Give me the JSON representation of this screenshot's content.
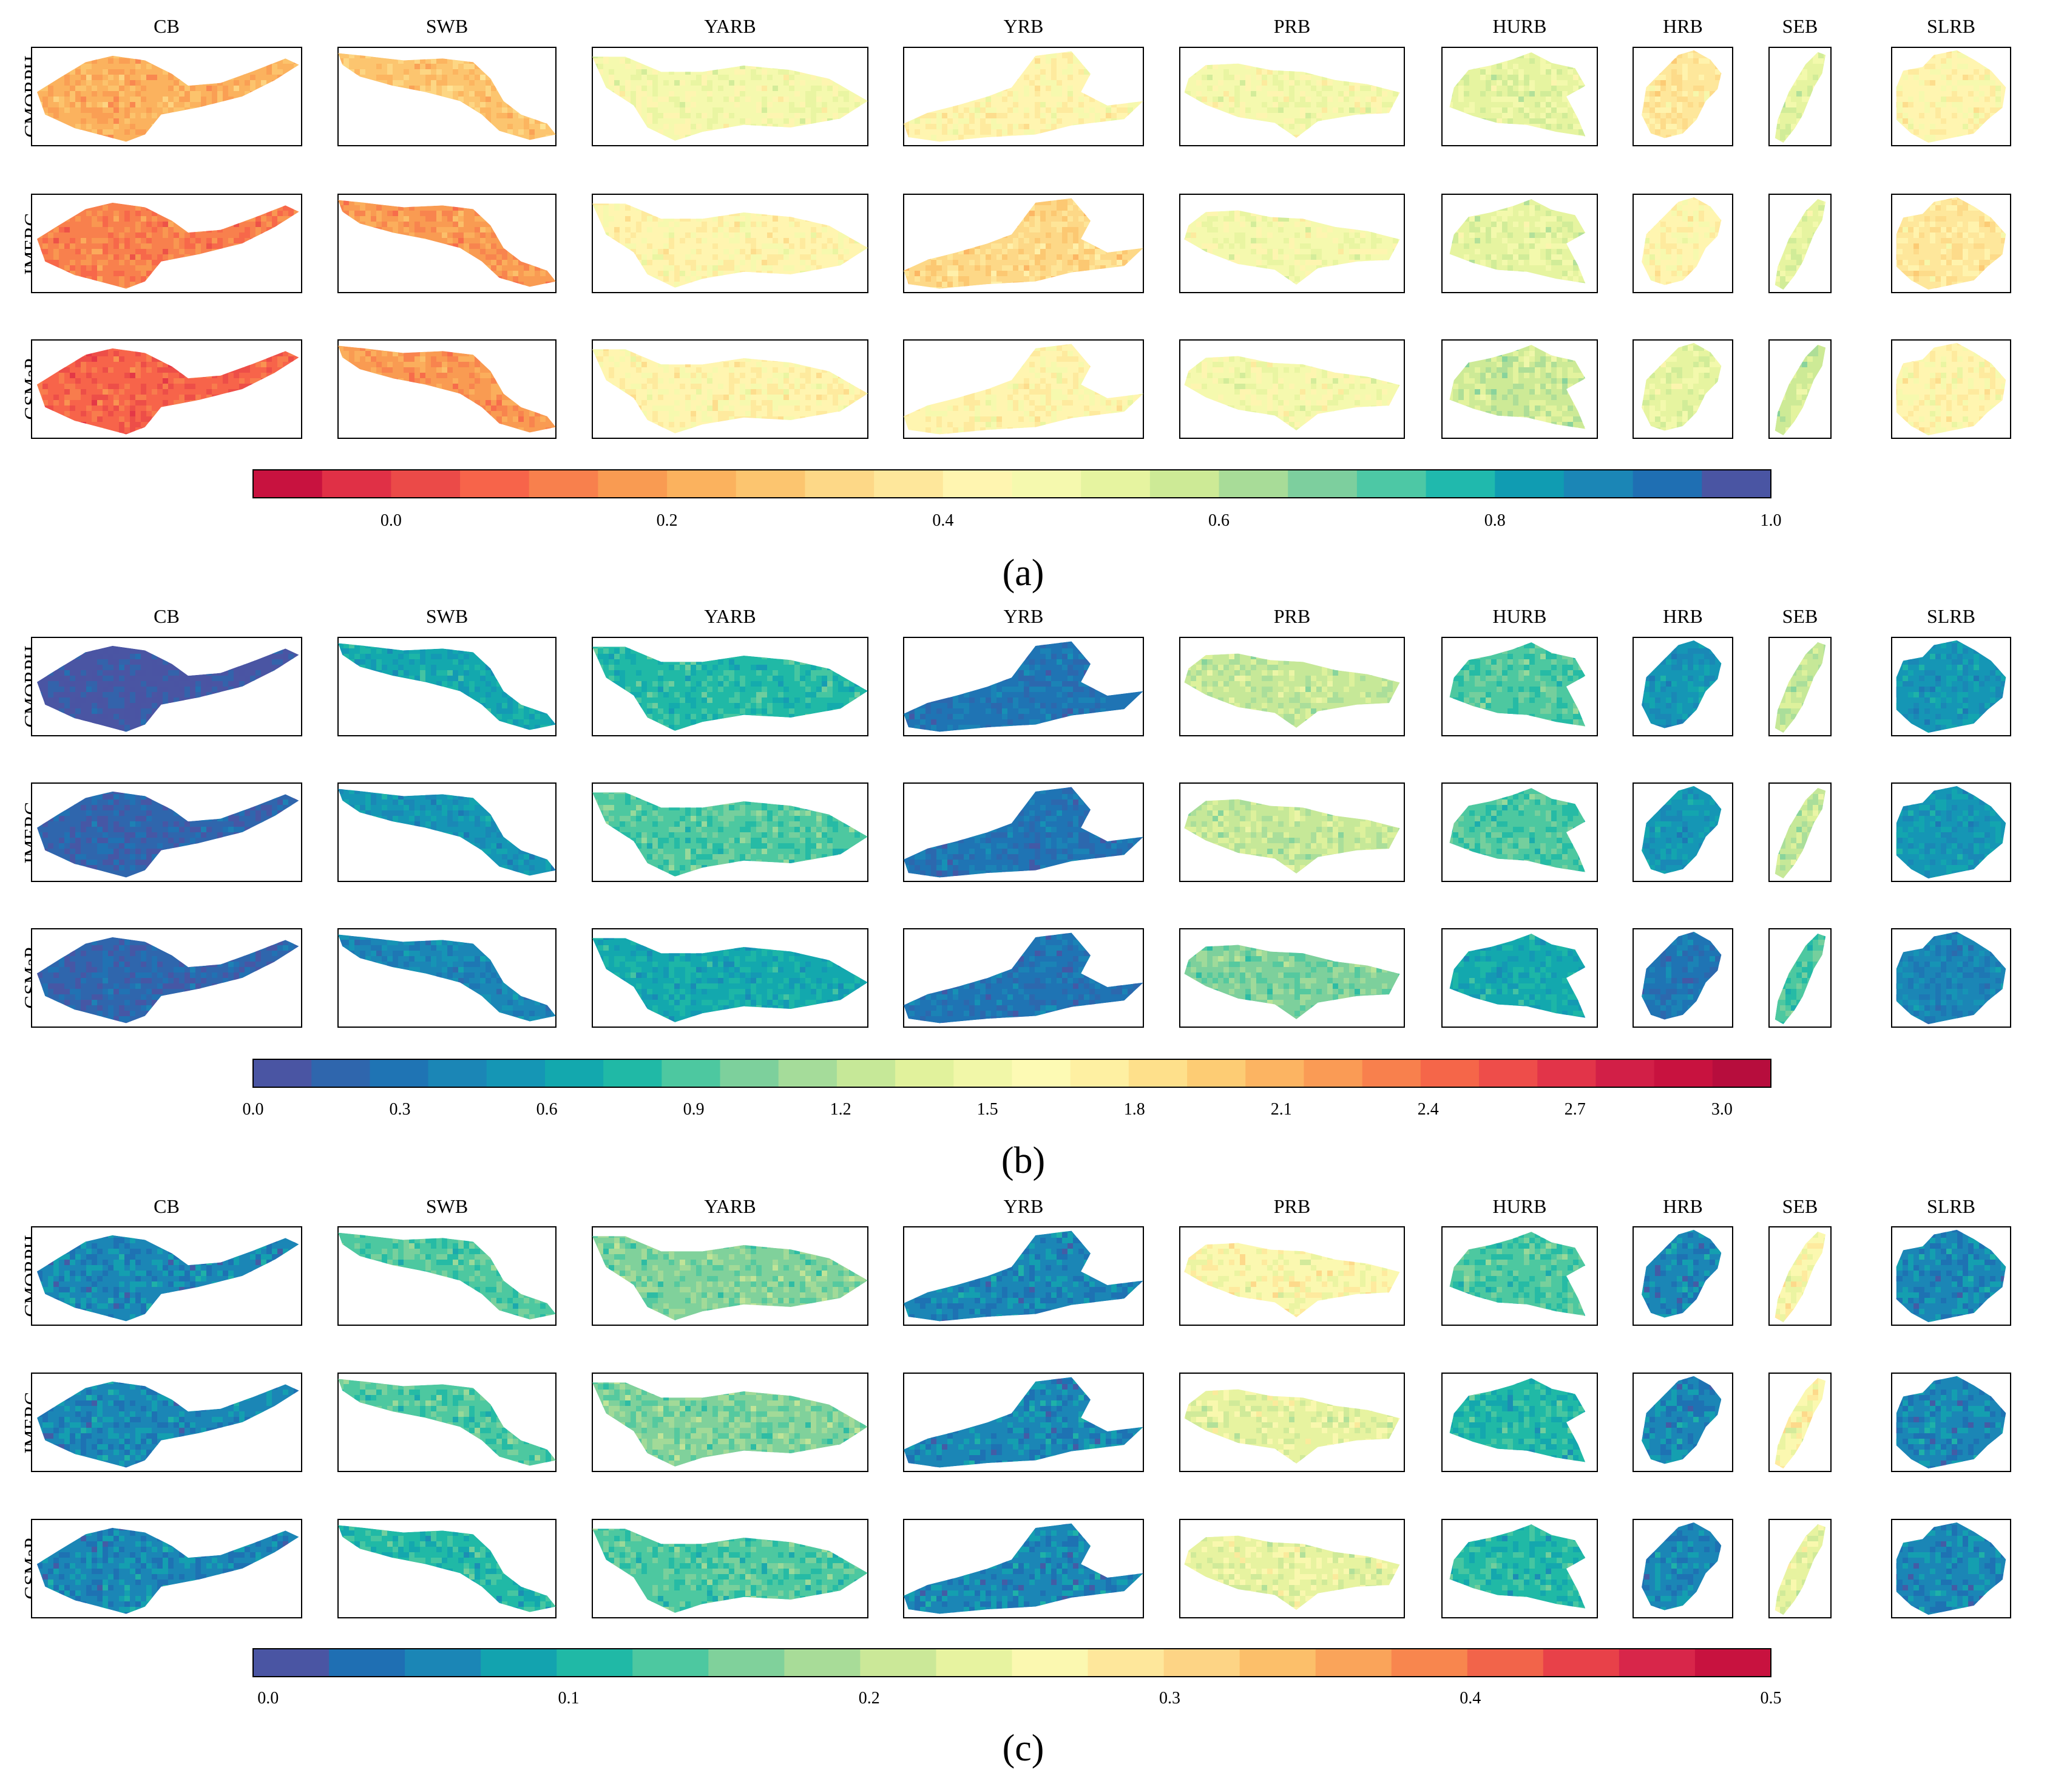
{
  "figure": {
    "basins": [
      "CB",
      "SWB",
      "YARB",
      "YRB",
      "PRB",
      "HURB",
      "HRB",
      "SEB",
      "SLRB"
    ],
    "products": [
      "CMORPH",
      "IMERG",
      "GSMaP"
    ]
  },
  "chart_data": [
    {
      "type": "heatmap",
      "panel_label": "(a)",
      "metric_note": "spatial maps per basin and product, shown with a discrete colorbar",
      "colorbar": {
        "ticks": [
          "0.0",
          "0.2",
          "0.4",
          "0.6",
          "0.8",
          "1.0"
        ],
        "tick_values": [
          0.0,
          0.2,
          0.4,
          0.6,
          0.8,
          1.0
        ],
        "range": [
          -0.1,
          1.0
        ],
        "colors": [
          "#c8123f",
          "#e03046",
          "#eb4a48",
          "#f7644a",
          "#f8804d",
          "#f99b52",
          "#fbb25e",
          "#fcc56f",
          "#fdd887",
          "#fee79b",
          "#fff5b0",
          "#f5f9ae",
          "#e6f4a0",
          "#cdea96",
          "#a8dc98",
          "#7dcf9e",
          "#4dc8a5",
          "#20b9ad",
          "#109cb2",
          "#1b86b6",
          "#1f6fb3",
          "#4a55a3"
        ]
      },
      "basin_values": {
        "CMORPH": [
          0.25,
          0.28,
          0.45,
          0.4,
          0.48,
          0.55,
          0.38,
          0.52,
          0.42
        ],
        "IMERG": [
          0.12,
          0.18,
          0.43,
          0.35,
          0.46,
          0.52,
          0.4,
          0.5,
          0.38
        ],
        "GSMaP": [
          0.08,
          0.15,
          0.44,
          0.4,
          0.47,
          0.56,
          0.5,
          0.56,
          0.4
        ]
      }
    },
    {
      "type": "heatmap",
      "panel_label": "(b)",
      "metric_note": "spatial maps per basin and product, shown with a discrete colorbar",
      "colorbar": {
        "ticks": [
          "0.0",
          "0.3",
          "0.6",
          "0.9",
          "1.2",
          "1.5",
          "1.8",
          "2.1",
          "2.4",
          "2.7",
          "3.0"
        ],
        "tick_values": [
          0.0,
          0.3,
          0.6,
          0.9,
          1.2,
          1.5,
          1.8,
          2.1,
          2.4,
          2.7,
          3.0
        ],
        "range": [
          0.0,
          3.1
        ],
        "colors": [
          "#4a55a3",
          "#2f66ad",
          "#1f74b4",
          "#1b86b6",
          "#1596b5",
          "#13a8ae",
          "#20b9a6",
          "#4dc8a0",
          "#7dd09c",
          "#a5dc9a",
          "#c6e898",
          "#e1f29c",
          "#f1f7a8",
          "#fdfab4",
          "#fef0a2",
          "#fee08b",
          "#fdcc74",
          "#fcb462",
          "#fa9b55",
          "#f8804d",
          "#f56649",
          "#ee4d4a",
          "#e23449",
          "#d21f47",
          "#c8123f",
          "#b70d3d"
        ]
      },
      "basin_values": {
        "CMORPH": [
          0.1,
          0.6,
          0.8,
          0.35,
          1.25,
          0.85,
          0.5,
          1.3,
          0.5
        ],
        "IMERG": [
          0.12,
          0.55,
          0.85,
          0.35,
          1.3,
          0.9,
          0.5,
          1.25,
          0.5
        ],
        "GSMaP": [
          0.15,
          0.45,
          0.7,
          0.3,
          1.0,
          0.7,
          0.35,
          0.9,
          0.4
        ]
      }
    },
    {
      "type": "heatmap",
      "panel_label": "(c)",
      "metric_note": "spatial maps per basin and product, shown with a discrete colorbar",
      "colorbar": {
        "ticks": [
          "0.0",
          "0.1",
          "0.2",
          "0.3",
          "0.4",
          "0.5"
        ],
        "tick_values": [
          0.0,
          0.1,
          0.2,
          0.3,
          0.4,
          0.5
        ],
        "range": [
          -0.005,
          0.5
        ],
        "colors": [
          "#4a55a3",
          "#1f6fb3",
          "#1b86b6",
          "#13a3af",
          "#20b9a6",
          "#4dc8a0",
          "#80d19b",
          "#a8dc98",
          "#cbe898",
          "#e7f3a0",
          "#fbf8b0",
          "#fee79b",
          "#fdd485",
          "#fcbf6a",
          "#faa45a",
          "#f8864e",
          "#f2644a",
          "#e84149",
          "#d8264a",
          "#c8123f"
        ]
      },
      "basin_values": {
        "CMORPH": [
          0.06,
          0.14,
          0.17,
          0.05,
          0.25,
          0.13,
          0.07,
          0.25,
          0.07
        ],
        "IMERG": [
          0.05,
          0.13,
          0.16,
          0.05,
          0.23,
          0.12,
          0.07,
          0.25,
          0.06
        ],
        "GSMaP": [
          0.05,
          0.11,
          0.14,
          0.05,
          0.24,
          0.1,
          0.06,
          0.24,
          0.06
        ]
      }
    }
  ]
}
